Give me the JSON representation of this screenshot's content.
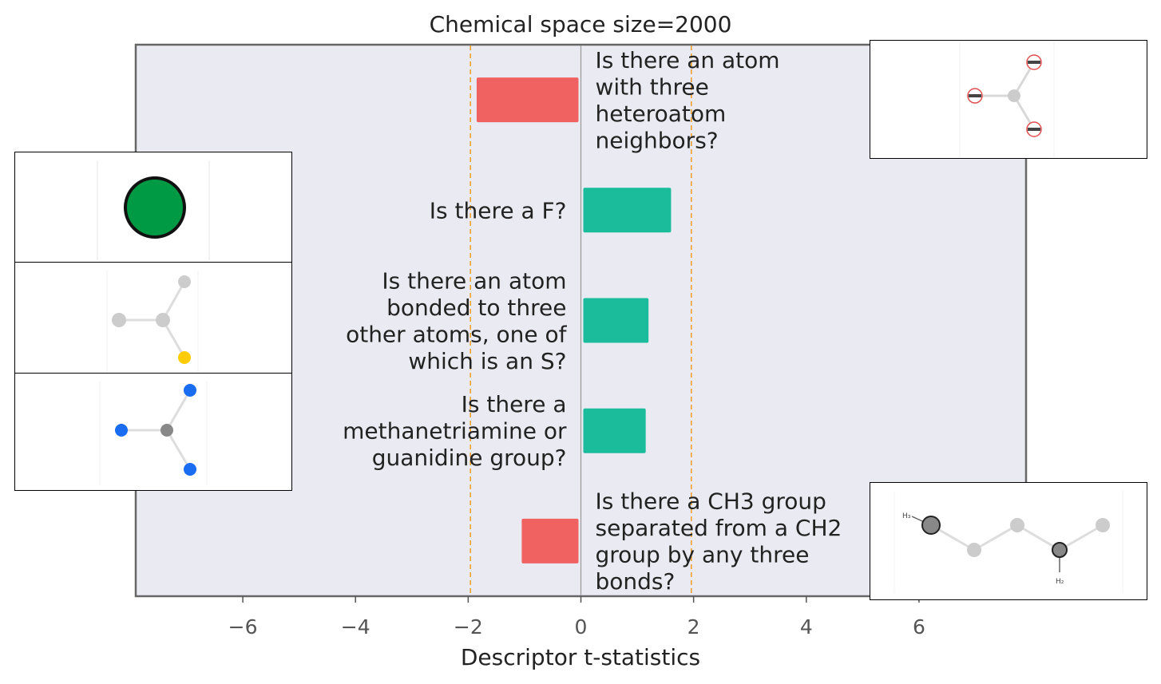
{
  "chart_data": {
    "type": "bar",
    "orientation": "horizontal",
    "title": "Chemical space size=2000",
    "xlabel": "Descriptor t-statistics",
    "ylabel": "",
    "xlim": [
      -7.9,
      7.9
    ],
    "xticks": [
      -6,
      -4,
      -2,
      0,
      2,
      4,
      6
    ],
    "xtick_labels": [
      "−6",
      "−4",
      "−2",
      "0",
      "2",
      "4",
      "6"
    ],
    "reference_lines": [
      -1.96,
      1.96
    ],
    "reference_line_color": "#f0a030",
    "positive_color": "#1abc9c",
    "negative_color": "#f06262",
    "plot_background": "#eaeaf2",
    "grid": false,
    "bars": [
      {
        "label": "Is there an atom with three heteroatom neighbors?",
        "label_lines": [
          "Is there an atom",
          "with three",
          "heteroatom",
          "neighbors?"
        ],
        "value": -1.85
      },
      {
        "label": "Is there a F?",
        "label_lines": [
          "Is there a F?"
        ],
        "value": 1.6
      },
      {
        "label": "Is there an atom bonded to three other atoms, one of which is an S?",
        "label_lines": [
          "Is there an atom",
          "bonded to three",
          "other atoms, one of",
          "which is an S?"
        ],
        "value": 1.2
      },
      {
        "label": "Is there a methanetriamine or guanidine group?",
        "label_lines": [
          "Is there a",
          "methanetriamine or",
          "guanidine group?"
        ],
        "value": 1.15
      },
      {
        "label": "Is there a CH3 group separated from a CH2 group by any three bonds?",
        "label_lines": [
          "Is there a CH3 group",
          "separated from a CH2",
          "group by any three",
          "bonds?"
        ],
        "value": -1.05
      }
    ]
  },
  "insets": {
    "heteroatom_neighbors": {
      "center_color": "#cccccc",
      "neighbor_color": "#e05050"
    },
    "fluorine": {
      "atom_color": "#009944"
    },
    "sulfur": {
      "atom_color": "#cccccc",
      "sulfur_color": "#ffcc00"
    },
    "guanidine": {
      "center_color": "#888888",
      "nitrogen_color": "#1a6cf0"
    },
    "ch3_ch2": {
      "atom_color": "#cccccc",
      "methyl_color": "#888888",
      "h_label_1": "H₃",
      "h_label_2": "H₂"
    }
  }
}
